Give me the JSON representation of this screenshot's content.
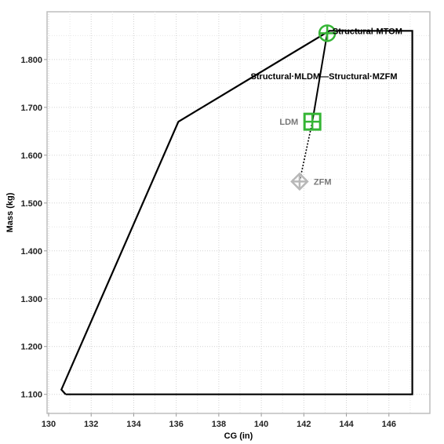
{
  "chart_data": {
    "type": "line",
    "xlabel": "CG (in)",
    "ylabel": "Mass (kg)",
    "xlim": [
      130,
      148
    ],
    "ylim": [
      1.07,
      1.89
    ],
    "x_ticks": [
      130,
      132,
      134,
      136,
      138,
      140,
      142,
      144,
      146
    ],
    "x_tick_labels": [
      "130",
      "132",
      "134",
      "136",
      "138",
      "140",
      "142",
      "144",
      "146"
    ],
    "y_ticks": [
      1.1,
      1.2,
      1.3,
      1.4,
      1.5,
      1.6,
      1.7,
      1.8
    ],
    "y_tick_labels": [
      "1.100",
      "1.200",
      "1.300",
      "1.400",
      "1.500",
      "1.600",
      "1.700",
      "1.800"
    ],
    "grid": true,
    "envelope": {
      "x": [
        130.8,
        130.6,
        136.1,
        143.2,
        147.1,
        147.1,
        130.8
      ],
      "y": [
        1.1,
        1.11,
        1.67,
        1.86,
        1.86,
        1.1,
        1.1
      ]
    },
    "cg_path": {
      "x": [
        143.1,
        142.4,
        141.8
      ],
      "y": [
        1.855,
        1.67,
        1.545
      ]
    },
    "points": [
      {
        "name": "TOM",
        "label": "",
        "x": 143.1,
        "y": 1.855,
        "marker": "circle-cross",
        "color": "#35b535"
      },
      {
        "name": "LDM",
        "label": "LDM",
        "x": 142.4,
        "y": 1.67,
        "marker": "square-cross",
        "color": "#35b535"
      },
      {
        "name": "ZFM",
        "label": "ZFM",
        "x": 141.8,
        "y": 1.545,
        "marker": "diamond-cross",
        "color": "#b8b8b8"
      }
    ],
    "annotations": [
      {
        "text": "Structural·MTOM",
        "x": 143.2,
        "y": 1.86,
        "color": "#000000"
      },
      {
        "text": "Structural·MLDM—Structural·MZFM",
        "x": 139.5,
        "y": 1.765,
        "color": "#000000"
      }
    ]
  }
}
